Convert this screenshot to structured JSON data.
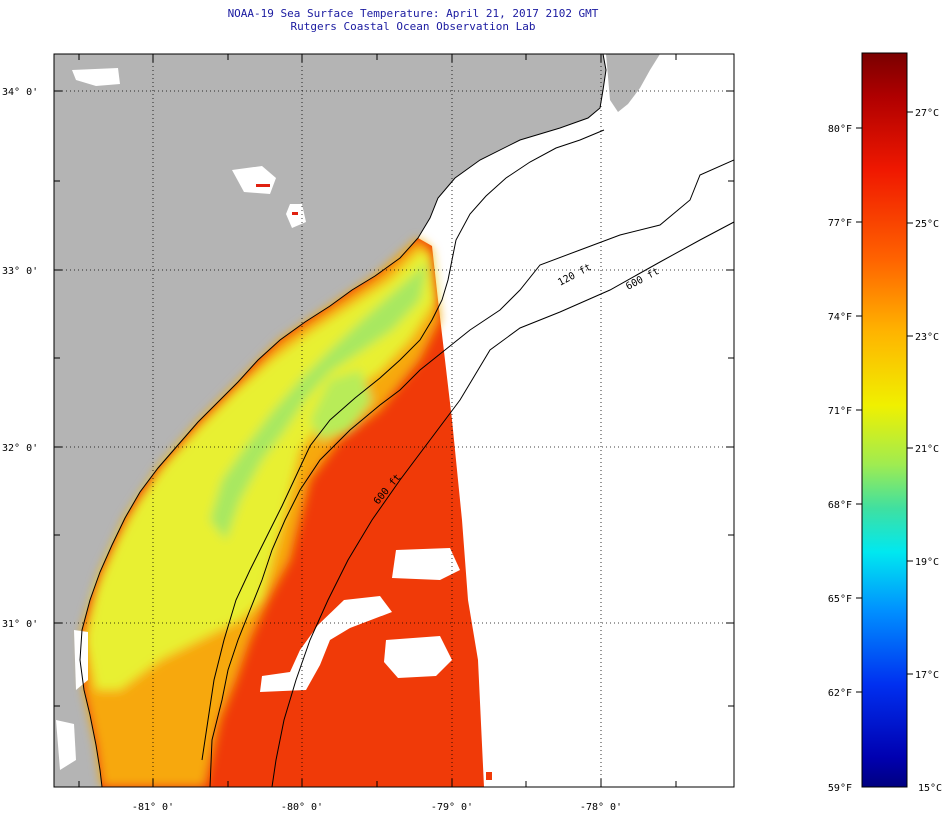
{
  "title": {
    "line1": "NOAA-19 Sea Surface Temperature:  April 21, 2017 2102 GMT",
    "line2": "Rutgers Coastal Ocean Observation Lab"
  },
  "map": {
    "lon_labels": [
      "-81° 0'",
      "-80° 0'",
      "-79° 0'",
      "-78° 0'"
    ],
    "lat_labels": [
      "34° 0'",
      "33° 0'",
      "32° 0'",
      "31° 0'"
    ],
    "isobath_labels": [
      "120 ft",
      "600 ft",
      "600 ft"
    ],
    "colors": {
      "land": "#b4b4b4",
      "no_data": "#ffffff",
      "warm": "#f03a08",
      "mid": "#f7a810",
      "cool": "#e8f030",
      "coolest": "#a0e860"
    }
  },
  "colorbar": {
    "fahrenheit_labels": [
      "80°F",
      "77°F",
      "74°F",
      "71°F",
      "68°F",
      "65°F",
      "62°F",
      "59°F"
    ],
    "celsius_labels": [
      "27°C",
      "25°C",
      "23°C",
      "21°C",
      "19°C",
      "17°C",
      "15°C"
    ],
    "gradient": [
      "#7a0000",
      "#c80000",
      "#ff2000",
      "#ff6a00",
      "#ffb000",
      "#ffee00",
      "#b0f040",
      "#40e8a0",
      "#00f0f0",
      "#00a0ff",
      "#0040ff",
      "#0010d0",
      "#000080"
    ]
  }
}
